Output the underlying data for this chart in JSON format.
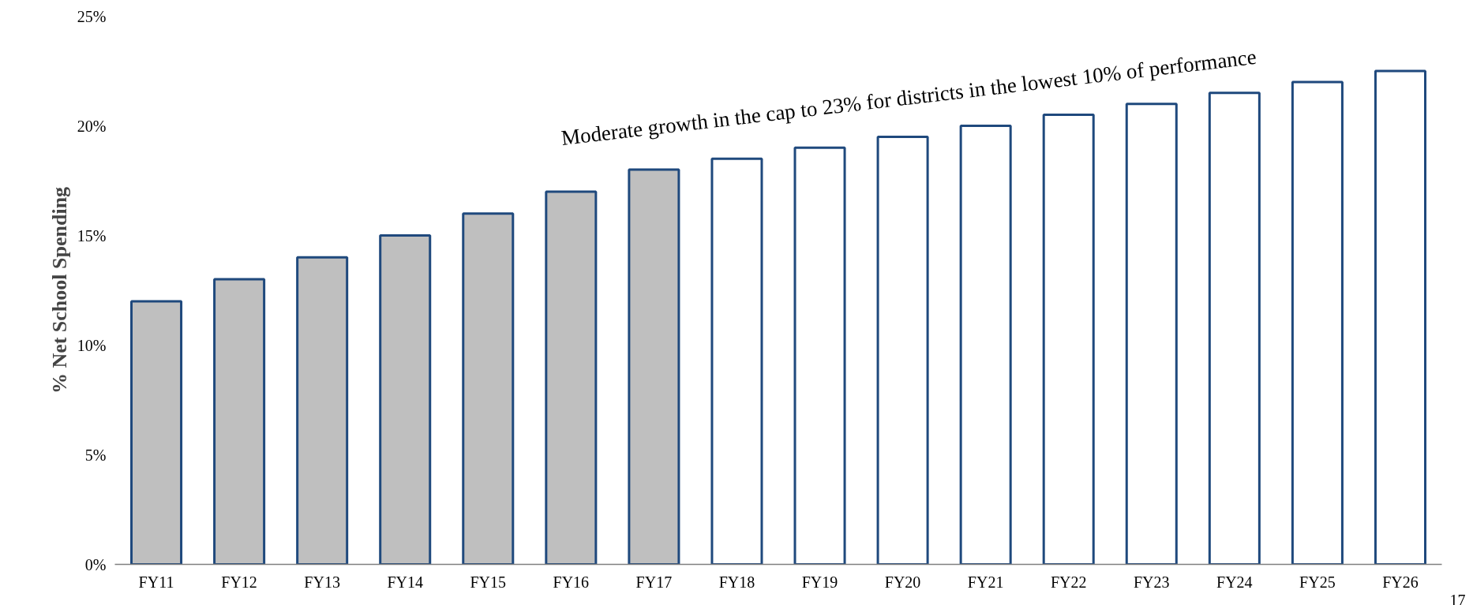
{
  "chart_data": {
    "type": "bar",
    "ylabel": "% Net School Spending",
    "categories": [
      "FY11",
      "FY12",
      "FY13",
      "FY14",
      "FY15",
      "FY16",
      "FY17",
      "FY18",
      "FY19",
      "FY20",
      "FY21",
      "FY22",
      "FY23",
      "FY24",
      "FY25",
      "FY26"
    ],
    "values": [
      12,
      13,
      14,
      15,
      16,
      17,
      18,
      18.5,
      19,
      19.5,
      20,
      20.5,
      21,
      21.5,
      22,
      22.5
    ],
    "colors": [
      "#bfbfbf",
      "#bfbfbf",
      "#bfbfbf",
      "#bfbfbf",
      "#bfbfbf",
      "#bfbfbf",
      "#bfbfbf",
      "#ffffff",
      "#ffffff",
      "#ffffff",
      "#ffffff",
      "#ffffff",
      "#ffffff",
      "#ffffff",
      "#ffffff",
      "#ffffff"
    ],
    "color": "#1f497d",
    "ylim": [
      0,
      25
    ],
    "yticks": [
      {
        "value": 0,
        "label": "0%"
      },
      {
        "value": 5,
        "label": "5%"
      },
      {
        "value": 10,
        "label": "10%"
      },
      {
        "value": 15,
        "label": "15%"
      },
      {
        "value": 20,
        "label": "20%"
      },
      {
        "value": 25,
        "label": "25%"
      }
    ],
    "grid": false,
    "annotations": [
      "Moderate growth in the cap to 23% for districts in the lowest 10% of performance",
      "17"
    ]
  }
}
